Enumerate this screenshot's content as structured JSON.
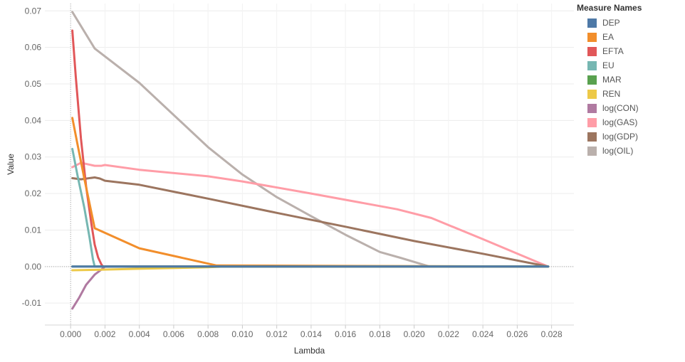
{
  "chart_data": {
    "type": "line",
    "xlabel": "Lambda",
    "ylabel": "Value",
    "xlim": [
      -0.0015,
      0.0293
    ],
    "ylim": [
      -0.016,
      0.072
    ],
    "xticks": [
      0.0,
      0.002,
      0.004,
      0.006,
      0.008,
      0.01,
      0.012,
      0.014,
      0.016,
      0.018,
      0.02,
      0.022,
      0.024,
      0.026,
      0.028
    ],
    "yticks": [
      -0.01,
      0.0,
      0.01,
      0.02,
      0.03,
      0.04,
      0.05,
      0.06,
      0.07
    ],
    "grid": true,
    "legend_position": "right",
    "legend_title": "Measure Names",
    "series": [
      {
        "name": "log(OIL)",
        "color": "#bab0ac",
        "x": [
          0.0001,
          0.0014,
          0.004,
          0.008,
          0.01,
          0.012,
          0.014,
          0.016,
          0.018,
          0.0192,
          0.0209,
          0.0278
        ],
        "y": [
          0.0697,
          0.0597,
          0.0503,
          0.0327,
          0.0252,
          0.019,
          0.0138,
          0.0087,
          0.004,
          0.0024,
          0.0,
          0.0
        ]
      },
      {
        "name": "log(GAS)",
        "color": "#ff9da7",
        "x": [
          0.0001,
          0.0006,
          0.0014,
          0.0018,
          0.002,
          0.004,
          0.008,
          0.01,
          0.014,
          0.019,
          0.021,
          0.024,
          0.0278
        ],
        "y": [
          0.0272,
          0.0284,
          0.0276,
          0.0276,
          0.0278,
          0.0265,
          0.0247,
          0.0233,
          0.02,
          0.0157,
          0.0133,
          0.0075,
          0.0
        ]
      },
      {
        "name": "log(GDP)",
        "color": "#9c755f",
        "x": [
          0.0001,
          0.0006,
          0.0014,
          0.0017,
          0.002,
          0.004,
          0.008,
          0.012,
          0.016,
          0.02,
          0.024,
          0.0278
        ],
        "y": [
          0.0242,
          0.0239,
          0.0244,
          0.0241,
          0.0235,
          0.0224,
          0.0186,
          0.0147,
          0.0109,
          0.007,
          0.0035,
          0.0
        ]
      },
      {
        "name": "EFTA",
        "color": "#e15759",
        "x": [
          0.0001,
          0.0003,
          0.0006,
          0.0009,
          0.0012,
          0.0014,
          0.0016,
          0.0018,
          0.0019,
          0.0278
        ],
        "y": [
          0.0646,
          0.052,
          0.035,
          0.022,
          0.012,
          0.006,
          0.0025,
          0.0005,
          0.0,
          0.0
        ]
      },
      {
        "name": "EA",
        "color": "#f28e2b",
        "x": [
          0.0001,
          0.0004,
          0.0008,
          0.0014,
          0.004,
          0.0085,
          0.0278
        ],
        "y": [
          0.0407,
          0.0335,
          0.024,
          0.0105,
          0.005,
          0.0003,
          0.0
        ]
      },
      {
        "name": "EU",
        "color": "#76b7b2",
        "x": [
          0.0001,
          0.0004,
          0.0008,
          0.0011,
          0.0013,
          0.0014,
          0.0278
        ],
        "y": [
          0.0322,
          0.025,
          0.016,
          0.008,
          0.002,
          0.0,
          0.0
        ]
      },
      {
        "name": "log(CON)",
        "color": "#b07aa1",
        "x": [
          0.0001,
          0.0005,
          0.0009,
          0.0014,
          0.0018,
          0.002,
          0.0278
        ],
        "y": [
          -0.0115,
          -0.0085,
          -0.005,
          -0.0022,
          -0.0008,
          0.0,
          0.0
        ]
      },
      {
        "name": "REN",
        "color": "#edc948",
        "x": [
          0.0001,
          0.0015,
          0.004,
          0.008,
          0.009,
          0.0278
        ],
        "y": [
          -0.001,
          -0.0009,
          -0.0006,
          -0.0002,
          0.0,
          0.0
        ]
      },
      {
        "name": "MAR",
        "color": "#59a14f",
        "x": [
          0.0001,
          0.0278
        ],
        "y": [
          0.0,
          0.0
        ]
      },
      {
        "name": "DEP",
        "color": "#4e79a7",
        "x": [
          0.0001,
          0.0278
        ],
        "y": [
          0.0,
          0.0
        ]
      }
    ]
  },
  "legend": {
    "title": "Measure Names",
    "items": [
      {
        "label": "DEP",
        "color": "#4e79a7"
      },
      {
        "label": "EA",
        "color": "#f28e2b"
      },
      {
        "label": "EFTA",
        "color": "#e15759"
      },
      {
        "label": "EU",
        "color": "#76b7b2"
      },
      {
        "label": "MAR",
        "color": "#59a14f"
      },
      {
        "label": "REN",
        "color": "#edc948"
      },
      {
        "label": "log(CON)",
        "color": "#b07aa1"
      },
      {
        "label": "log(GAS)",
        "color": "#ff9da7"
      },
      {
        "label": "log(GDP)",
        "color": "#9c755f"
      },
      {
        "label": "log(OIL)",
        "color": "#bab0ac"
      }
    ]
  }
}
